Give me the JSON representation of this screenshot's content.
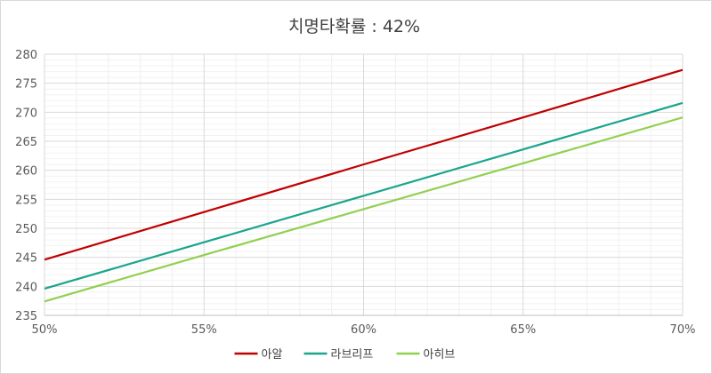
{
  "chart_data": {
    "type": "line",
    "title": "치명타확률 : 42%",
    "xlabel": "",
    "ylabel": "",
    "x": [
      50,
      55,
      60,
      65,
      70
    ],
    "x_tick_labels": [
      "50%",
      "55%",
      "60%",
      "65%",
      "70%"
    ],
    "xlim": [
      50,
      70
    ],
    "ylim": [
      235,
      280
    ],
    "y_ticks": [
      235,
      240,
      245,
      250,
      255,
      260,
      265,
      270,
      275,
      280
    ],
    "grid": true,
    "legend_position": "bottom",
    "series": [
      {
        "name": "아알",
        "color": "#c00000",
        "values": [
          244.6,
          252.8,
          261.0,
          269.1,
          277.3
        ]
      },
      {
        "name": "라브리프",
        "color": "#1aa58c",
        "values": [
          239.6,
          247.6,
          255.6,
          263.6,
          271.6
        ]
      },
      {
        "name": "아히브",
        "color": "#92d050",
        "values": [
          237.4,
          245.4,
          253.3,
          261.2,
          269.1
        ]
      }
    ]
  }
}
